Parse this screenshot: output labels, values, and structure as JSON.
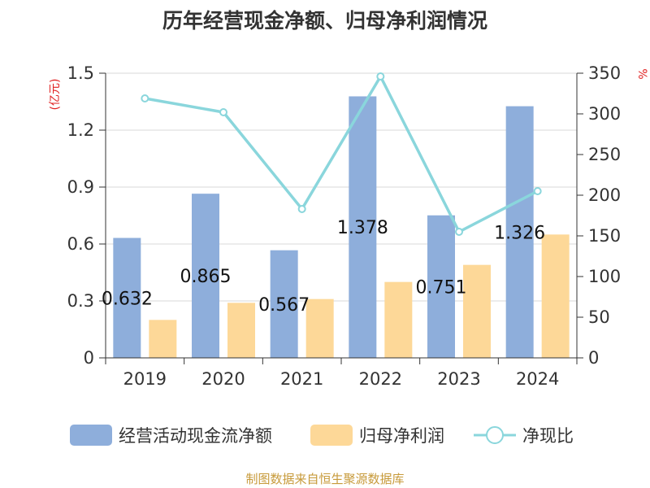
{
  "title": "历年经营现金净额、归母净利润情况",
  "footer": "制图数据来自恒生聚源数据库",
  "chart_data": {
    "type": "bar",
    "categories": [
      "2019",
      "2020",
      "2021",
      "2022",
      "2023",
      "2024"
    ],
    "series": [
      {
        "name": "经营活动现金流净额",
        "type": "bar",
        "axis": "left",
        "color": "#8eaedb",
        "values": [
          0.632,
          0.865,
          0.567,
          1.378,
          0.751,
          1.326
        ],
        "data_labels": [
          "0.632",
          "0.865",
          "0.567",
          "1.378",
          "0.751",
          "1.326"
        ]
      },
      {
        "name": "归母净利润",
        "type": "bar",
        "axis": "left",
        "color": "#fdd898",
        "values": [
          0.2,
          0.29,
          0.31,
          0.4,
          0.49,
          0.65
        ]
      },
      {
        "name": "净现比",
        "type": "line",
        "axis": "right",
        "color": "#8ad6dc",
        "values": [
          319,
          302,
          183,
          346,
          155,
          205
        ]
      }
    ],
    "y_left": {
      "unit": "(亿元)",
      "min": 0,
      "max": 1.5,
      "ticks": [
        "0",
        "0.3",
        "0.6",
        "0.9",
        "1.2",
        "1.5"
      ]
    },
    "y_right": {
      "unit": "%",
      "min": 0,
      "max": 350,
      "ticks": [
        "0",
        "50",
        "100",
        "150",
        "200",
        "250",
        "300",
        "350"
      ]
    },
    "legend_position": "bottom",
    "grid": "horizontal"
  }
}
